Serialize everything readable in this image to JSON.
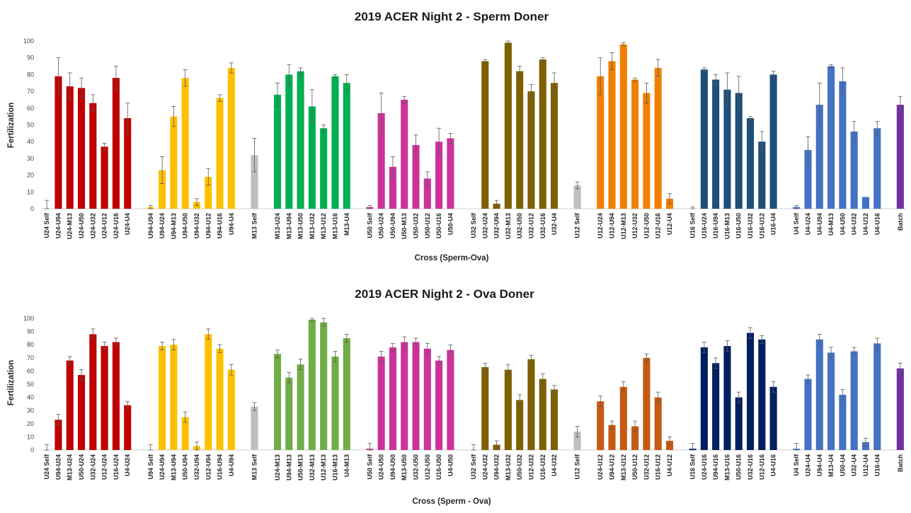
{
  "chart_data": [
    {
      "type": "bar",
      "title": "2019 ACER Night 2 - Sperm Doner",
      "xlabel": "Cross (Sperm-Ova)",
      "ylabel": "Fertilization",
      "ylim": [
        0,
        100
      ],
      "yticks": [
        0,
        10,
        20,
        30,
        40,
        50,
        60,
        70,
        80,
        90,
        100
      ],
      "grid": false,
      "legend": "none",
      "groups": [
        {
          "color": "#c00000",
          "categories": [
            "U24 Self",
            "U24-U94",
            "U24-M13",
            "U24-U50",
            "U24-U32",
            "U24-U12",
            "U24-U16",
            "U24-U4"
          ],
          "values": [
            0,
            79,
            73,
            72,
            63,
            37,
            78,
            54
          ],
          "errors": [
            5,
            11,
            8,
            6,
            5,
            2,
            7,
            9
          ]
        },
        {
          "color": "#ffc000",
          "categories": [
            "U94-U94",
            "U94-U24",
            "U94-M13",
            "U94-U50",
            "U94-U32",
            "U94-U12",
            "U94-U16",
            "U94-U4"
          ],
          "values": [
            1,
            23,
            55,
            78,
            4,
            19,
            66,
            84
          ],
          "errors": [
            1,
            8,
            6,
            5,
            2,
            5,
            2,
            3
          ]
        },
        {
          "color": "#bfbfbf",
          "categories": [
            "M13 Self"
          ],
          "values": [
            32
          ],
          "errors": [
            10
          ]
        },
        {
          "color": "#00b050",
          "categories": [
            "M13-U24",
            "M13-U94",
            "M13-U50",
            "M13-U32",
            "M13-U12",
            "M13-U16",
            "M13-U4"
          ],
          "values": [
            68,
            80,
            82,
            61,
            48,
            79,
            75
          ],
          "errors": [
            7,
            6,
            2,
            10,
            2,
            1,
            5
          ]
        },
        {
          "color": "#cc3399",
          "categories": [
            "U50 Self",
            "U50-U24",
            "U50-U94",
            "U50-M13",
            "U50-U32",
            "U50-U12",
            "U50-U16",
            "U50-U4"
          ],
          "values": [
            1,
            57,
            25,
            65,
            38,
            18,
            40,
            42
          ],
          "errors": [
            1,
            12,
            6,
            2,
            6,
            4,
            8,
            3
          ]
        },
        {
          "color": "#7f6000",
          "categories": [
            "U32 Self",
            "U32-U24",
            "U32-U94",
            "U32-M13",
            "U32-U50",
            "U32-U12",
            "U32-U16",
            "U32-U4"
          ],
          "values": [
            0,
            88,
            3,
            99,
            82,
            70,
            89,
            75
          ],
          "errors": [
            0,
            1,
            2,
            1,
            3,
            4,
            1,
            6
          ]
        },
        {
          "color": "#bfbfbf",
          "categories": [
            "U12 Self"
          ],
          "values": [
            14
          ],
          "errors": [
            2
          ]
        },
        {
          "color": "#f28000",
          "categories": [
            "U12-U24",
            "U12-U94",
            "U12-M13",
            "U12-U32",
            "U12-U50",
            "U12-U16",
            "U12-U4"
          ],
          "values": [
            79,
            88,
            98,
            77,
            69,
            84,
            6
          ],
          "errors": [
            11,
            5,
            1,
            1,
            6,
            5,
            3
          ]
        },
        {
          "color": "#1f4e79",
          "categories": [
            "U16 Self",
            "U16-U24",
            "U16-U94",
            "U16-M13",
            "U16-U50",
            "U16-U32",
            "U16-U12",
            "U16-U4"
          ],
          "values": [
            0,
            83,
            77,
            71,
            69,
            54,
            40,
            80
          ],
          "errors": [
            1,
            1,
            3,
            10,
            10,
            1,
            6,
            2
          ]
        },
        {
          "color": "#4472c4",
          "categories": [
            "U4 Self",
            "U4-U24",
            "U4-U94",
            "U4-M13",
            "U4-U50",
            "U4-U32",
            "U4-U12",
            "U4-U16"
          ],
          "values": [
            1,
            35,
            62,
            85,
            76,
            46,
            7,
            48
          ],
          "errors": [
            1,
            8,
            13,
            1,
            8,
            6,
            0,
            4
          ]
        },
        {
          "color": "#7030a0",
          "categories": [
            "Batch"
          ],
          "values": [
            62
          ],
          "errors": [
            5
          ]
        }
      ]
    },
    {
      "type": "bar",
      "title": "2019 ACER Night 2 - Ova Doner",
      "xlabel": "Cross (Sperm - Ova)",
      "ylabel": "Fertilization",
      "ylim": [
        0,
        100
      ],
      "yticks": [
        0,
        10,
        20,
        30,
        40,
        50,
        60,
        70,
        80,
        90,
        100
      ],
      "grid": false,
      "legend": "none",
      "groups": [
        {
          "color": "#c00000",
          "categories": [
            "U24 Self",
            "U94-U24",
            "M13-U24",
            "U50-U24",
            "U32-U24",
            "U12-U24",
            "U16-U24",
            "U4-U24"
          ],
          "values": [
            0,
            23,
            68,
            57,
            88,
            79,
            82,
            34
          ],
          "errors": [
            4,
            4,
            3,
            4,
            4,
            3,
            3,
            3
          ]
        },
        {
          "color": "#ffc000",
          "categories": [
            "U94 Self",
            "U24-U94",
            "M13-U94",
            "U50-U94",
            "U32-U94",
            "U12-U94",
            "U16-U94",
            "U4-U94"
          ],
          "values": [
            0,
            79,
            80,
            25,
            3,
            88,
            77,
            61
          ],
          "errors": [
            4,
            3,
            4,
            4,
            3,
            4,
            3,
            4
          ]
        },
        {
          "color": "#bfbfbf",
          "categories": [
            "M13 Self"
          ],
          "values": [
            33
          ],
          "errors": [
            3
          ]
        },
        {
          "color": "#70ad47",
          "categories": [
            "U24-M13",
            "U94-M13",
            "U50-M13",
            "U32-M13",
            "U12-M13",
            "U16-M13",
            "U4-M13"
          ],
          "values": [
            73,
            55,
            65,
            99,
            97,
            71,
            85
          ],
          "errors": [
            3,
            4,
            4,
            1,
            3,
            4,
            3
          ]
        },
        {
          "color": "#cc3399",
          "categories": [
            "U50 Self",
            "U24-U50",
            "U94-U50",
            "M13-U50",
            "U32-U50",
            "U12-U50",
            "U16-U50",
            "U4-U50"
          ],
          "values": [
            1,
            71,
            78,
            82,
            82,
            77,
            68,
            76
          ],
          "errors": [
            4,
            4,
            3,
            4,
            3,
            4,
            3,
            4
          ]
        },
        {
          "color": "#7f6000",
          "categories": [
            "U32 Self",
            "U24-U32",
            "U94-U32",
            "M13-U32",
            "U50-U32",
            "U12-U32",
            "U16-U32",
            "U4-U32"
          ],
          "values": [
            0,
            63,
            4,
            61,
            38,
            69,
            54,
            46
          ],
          "errors": [
            4,
            3,
            3,
            4,
            4,
            3,
            4,
            3
          ]
        },
        {
          "color": "#bfbfbf",
          "categories": [
            "U12 Self"
          ],
          "values": [
            14
          ],
          "errors": [
            4
          ]
        },
        {
          "color": "#c55a11",
          "categories": [
            "U24-U12",
            "U94-U12",
            "M13-U12",
            "U50-U12",
            "U32-U12",
            "U16-U12",
            "U4-U12"
          ],
          "values": [
            37,
            19,
            48,
            18,
            70,
            40,
            7
          ],
          "errors": [
            4,
            3,
            4,
            4,
            3,
            4,
            3
          ]
        },
        {
          "color": "#002060",
          "categories": [
            "U16 Self",
            "U24-U16",
            "U94-U16",
            "M13-U16",
            "U50-U16",
            "U32-U16",
            "U12-U16",
            "U4-U16"
          ],
          "values": [
            1,
            78,
            66,
            79,
            40,
            89,
            84,
            48
          ],
          "errors": [
            4,
            4,
            4,
            4,
            4,
            4,
            3,
            4
          ]
        },
        {
          "color": "#4472c4",
          "categories": [
            "U4 Self",
            "U24-U4",
            "U94-U4",
            "M13-U4",
            "U50-U4",
            "U32-U4",
            "U12-U4",
            "U16-U4"
          ],
          "values": [
            1,
            54,
            84,
            74,
            42,
            75,
            6,
            81
          ],
          "errors": [
            4,
            3,
            4,
            4,
            4,
            3,
            3,
            4
          ]
        },
        {
          "color": "#7030a0",
          "categories": [
            "Batch"
          ],
          "values": [
            62
          ],
          "errors": [
            4
          ]
        }
      ]
    }
  ]
}
